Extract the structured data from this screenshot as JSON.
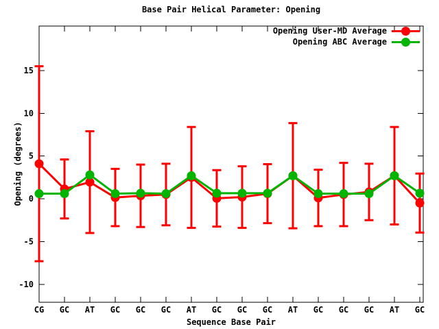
{
  "title": "Base Pair Helical Parameter: Opening",
  "chart_data": {
    "type": "line",
    "title": "Base Pair Helical Parameter: Opening",
    "xlabel": "Sequence Base Pair",
    "ylabel": "Opening (degrees)",
    "categories": [
      "CG",
      "GC",
      "AT",
      "GC",
      "GC",
      "GC",
      "AT",
      "GC",
      "GC",
      "GC",
      "AT",
      "GC",
      "GC",
      "GC",
      "AT",
      "GC"
    ],
    "yticks": [
      15,
      10,
      5,
      0,
      -5,
      -10
    ],
    "ylim": [
      -12.1,
      20.2
    ],
    "grid": false,
    "legend_position": "top-right-inside",
    "axis_color": "#000000",
    "background_color": "#ffffff",
    "series": [
      {
        "name": "Opening User-MD Average",
        "color": "#ff0000",
        "marker": "circle",
        "error_bars": true,
        "values": [
          4.1,
          1.15,
          1.95,
          0.15,
          0.35,
          0.5,
          2.5,
          0.05,
          0.2,
          0.6,
          2.7,
          0.1,
          0.5,
          0.8,
          2.7,
          -0.5
        ],
        "errors": [
          11.4,
          3.45,
          5.95,
          3.35,
          3.65,
          3.6,
          5.9,
          3.3,
          3.6,
          3.45,
          6.15,
          3.3,
          3.7,
          3.3,
          5.7,
          3.45
        ]
      },
      {
        "name": "Opening ABC Average",
        "color": "#00b400",
        "marker": "circle",
        "error_bars": false,
        "values": [
          0.6,
          0.6,
          2.8,
          0.6,
          0.65,
          0.6,
          2.7,
          0.65,
          0.65,
          0.65,
          2.7,
          0.6,
          0.6,
          0.6,
          2.7,
          0.65
        ]
      }
    ]
  }
}
